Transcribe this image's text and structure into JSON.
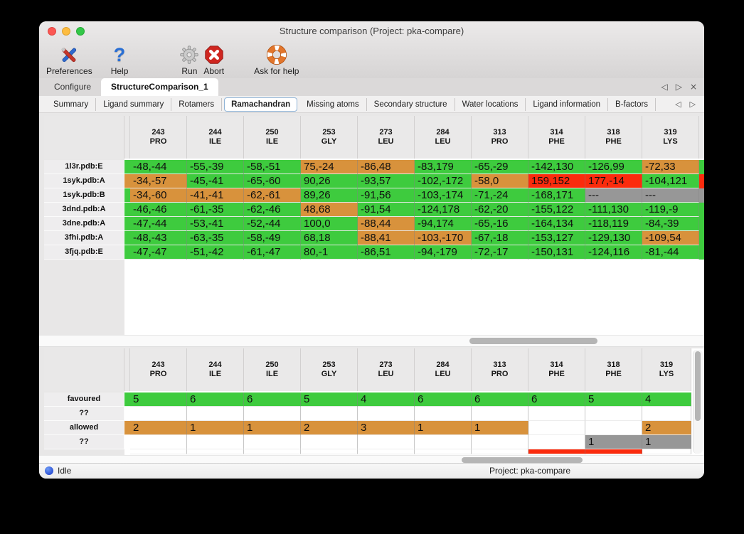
{
  "colors": {
    "green": "#3ecb3e",
    "orange": "#d8923c",
    "red": "#fb2b0d",
    "gray": "#979797",
    "white": "#ffffff"
  },
  "title_bar": {
    "title": "Structure comparison (Project: pka-compare)"
  },
  "toolbar": {
    "items": [
      {
        "label": "Preferences"
      },
      {
        "label": "Help"
      },
      {
        "label": "Run"
      },
      {
        "label": "Abort"
      },
      {
        "label": "Ask for help"
      }
    ]
  },
  "tab_bar": {
    "tabs": [
      {
        "label": "Configure",
        "active": false
      },
      {
        "label": "StructureComparison_1",
        "active": true
      }
    ],
    "icons": {
      "prev": "◁",
      "next": "▷",
      "close": "×"
    }
  },
  "subtab_bar": {
    "tabs": [
      "Summary",
      "Ligand summary",
      "Rotamers",
      "Ramachandran",
      "Missing atoms",
      "Secondary structure",
      "Water locations",
      "Ligand information",
      "B-factors"
    ],
    "selected": "Ramachandran",
    "icons": {
      "prev": "◁",
      "next": "▷"
    }
  },
  "columns": [
    {
      "num": "243",
      "res": "PRO"
    },
    {
      "num": "244",
      "res": "ILE"
    },
    {
      "num": "250",
      "res": "ILE"
    },
    {
      "num": "253",
      "res": "GLY"
    },
    {
      "num": "273",
      "res": "LEU"
    },
    {
      "num": "284",
      "res": "LEU"
    },
    {
      "num": "313",
      "res": "PRO"
    },
    {
      "num": "314",
      "res": "PHE"
    },
    {
      "num": "318",
      "res": "PHE"
    },
    {
      "num": "319",
      "res": "LYS"
    }
  ],
  "ramachandran_table": {
    "rows": [
      {
        "name": "1l3r.pdb:E",
        "strip": "green",
        "edge": "green",
        "cells": [
          {
            "v": "-48,-44",
            "c": "green"
          },
          {
            "v": "-55,-39",
            "c": "green"
          },
          {
            "v": "-58,-51",
            "c": "green"
          },
          {
            "v": "75,-24",
            "c": "orange"
          },
          {
            "v": "-86,48",
            "c": "orange"
          },
          {
            "v": "-83,179",
            "c": "green"
          },
          {
            "v": "-65,-29",
            "c": "green"
          },
          {
            "v": "-142,130",
            "c": "green"
          },
          {
            "v": "-126,99",
            "c": "green"
          },
          {
            "v": "-72,33",
            "c": "orange"
          }
        ]
      },
      {
        "name": "1syk.pdb:A",
        "strip": "orange",
        "edge": "red",
        "cells": [
          {
            "v": "-34,-57",
            "c": "orange"
          },
          {
            "v": "-45,-41",
            "c": "green"
          },
          {
            "v": "-65,-60",
            "c": "green"
          },
          {
            "v": "90,26",
            "c": "green"
          },
          {
            "v": "-93,57",
            "c": "green"
          },
          {
            "v": "-102,-172",
            "c": "green"
          },
          {
            "v": "-58,0",
            "c": "orange"
          },
          {
            "v": "159,152",
            "c": "red"
          },
          {
            "v": "177,-14",
            "c": "red"
          },
          {
            "v": "-104,121",
            "c": "green"
          }
        ]
      },
      {
        "name": "1syk.pdb:B",
        "strip": "green",
        "edge": "gray",
        "cells": [
          {
            "v": "-34,-60",
            "c": "orange"
          },
          {
            "v": "-41,-41",
            "c": "orange"
          },
          {
            "v": "-62,-61",
            "c": "orange"
          },
          {
            "v": "89,26",
            "c": "green"
          },
          {
            "v": "-91,56",
            "c": "green"
          },
          {
            "v": "-103,-174",
            "c": "green"
          },
          {
            "v": "-71,-24",
            "c": "green"
          },
          {
            "v": "-168,171",
            "c": "green"
          },
          {
            "v": "---",
            "c": "gray"
          },
          {
            "v": "---",
            "c": "gray"
          }
        ]
      },
      {
        "name": "3dnd.pdb:A",
        "strip": "green",
        "edge": "green",
        "cells": [
          {
            "v": "-46,-46",
            "c": "green"
          },
          {
            "v": "-61,-35",
            "c": "green"
          },
          {
            "v": "-62,-46",
            "c": "green"
          },
          {
            "v": "48,68",
            "c": "orange"
          },
          {
            "v": "-91,54",
            "c": "green"
          },
          {
            "v": "-124,178",
            "c": "green"
          },
          {
            "v": "-62,-20",
            "c": "green"
          },
          {
            "v": "-155,122",
            "c": "green"
          },
          {
            "v": "-111,130",
            "c": "green"
          },
          {
            "v": "-119,-9",
            "c": "green"
          }
        ]
      },
      {
        "name": "3dne.pdb:A",
        "strip": "green",
        "edge": "green",
        "cells": [
          {
            "v": "-47,-44",
            "c": "green"
          },
          {
            "v": "-53,-41",
            "c": "green"
          },
          {
            "v": "-52,-44",
            "c": "green"
          },
          {
            "v": "100,0",
            "c": "green"
          },
          {
            "v": "-88,44",
            "c": "orange"
          },
          {
            "v": "-94,174",
            "c": "green"
          },
          {
            "v": "-65,-16",
            "c": "green"
          },
          {
            "v": "-164,134",
            "c": "green"
          },
          {
            "v": "-118,119",
            "c": "green"
          },
          {
            "v": "-84,-39",
            "c": "green"
          }
        ]
      },
      {
        "name": "3fhi.pdb:A",
        "strip": "green",
        "edge": "green",
        "cells": [
          {
            "v": "-48,-43",
            "c": "green"
          },
          {
            "v": "-63,-35",
            "c": "green"
          },
          {
            "v": "-58,-49",
            "c": "green"
          },
          {
            "v": "68,18",
            "c": "green"
          },
          {
            "v": "-88,41",
            "c": "orange"
          },
          {
            "v": "-103,-170",
            "c": "orange"
          },
          {
            "v": "-67,-18",
            "c": "green"
          },
          {
            "v": "-153,127",
            "c": "green"
          },
          {
            "v": "-129,130",
            "c": "green"
          },
          {
            "v": "-109,54",
            "c": "orange"
          }
        ]
      },
      {
        "name": "3fjq.pdb:E",
        "strip": "green",
        "edge": "green",
        "cells": [
          {
            "v": "-47,-47",
            "c": "green"
          },
          {
            "v": "-51,-42",
            "c": "green"
          },
          {
            "v": "-61,-47",
            "c": "green"
          },
          {
            "v": "80,-1",
            "c": "green"
          },
          {
            "v": "-86,51",
            "c": "green"
          },
          {
            "v": "-94,-179",
            "c": "green"
          },
          {
            "v": "-72,-17",
            "c": "green"
          },
          {
            "v": "-150,131",
            "c": "green"
          },
          {
            "v": "-124,116",
            "c": "green"
          },
          {
            "v": "-81,-44",
            "c": "green"
          }
        ]
      }
    ]
  },
  "summary_table": {
    "rows": [
      {
        "name": "favoured",
        "strip": "green",
        "cells": [
          {
            "v": "5",
            "c": "green"
          },
          {
            "v": "6",
            "c": "green"
          },
          {
            "v": "6",
            "c": "green"
          },
          {
            "v": "5",
            "c": "green"
          },
          {
            "v": "4",
            "c": "green"
          },
          {
            "v": "6",
            "c": "green"
          },
          {
            "v": "6",
            "c": "green"
          },
          {
            "v": "6",
            "c": "green"
          },
          {
            "v": "5",
            "c": "green"
          },
          {
            "v": "4",
            "c": "green"
          }
        ]
      },
      {
        "name": "??",
        "strip": "white",
        "cells": [
          {
            "v": "",
            "c": "white"
          },
          {
            "v": "",
            "c": "white"
          },
          {
            "v": "",
            "c": "white"
          },
          {
            "v": "",
            "c": "white"
          },
          {
            "v": "",
            "c": "white"
          },
          {
            "v": "",
            "c": "white"
          },
          {
            "v": "",
            "c": "white"
          },
          {
            "v": "",
            "c": "white"
          },
          {
            "v": "",
            "c": "white"
          },
          {
            "v": "",
            "c": "white"
          }
        ]
      },
      {
        "name": "allowed",
        "strip": "orange",
        "cells": [
          {
            "v": "2",
            "c": "orange"
          },
          {
            "v": "1",
            "c": "orange"
          },
          {
            "v": "1",
            "c": "orange"
          },
          {
            "v": "2",
            "c": "orange"
          },
          {
            "v": "3",
            "c": "orange"
          },
          {
            "v": "1",
            "c": "orange"
          },
          {
            "v": "1",
            "c": "orange"
          },
          {
            "v": "",
            "c": "white"
          },
          {
            "v": "",
            "c": "white"
          },
          {
            "v": "2",
            "c": "orange"
          }
        ]
      },
      {
        "name": "??",
        "strip": "white",
        "cells": [
          {
            "v": "",
            "c": "white"
          },
          {
            "v": "",
            "c": "white"
          },
          {
            "v": "",
            "c": "white"
          },
          {
            "v": "",
            "c": "white"
          },
          {
            "v": "",
            "c": "white"
          },
          {
            "v": "",
            "c": "white"
          },
          {
            "v": "",
            "c": "white"
          },
          {
            "v": "",
            "c": "white"
          },
          {
            "v": "1",
            "c": "gray"
          },
          {
            "v": "1",
            "c": "gray"
          }
        ]
      }
    ],
    "partial_row": [
      "white",
      "white",
      "white",
      "white",
      "white",
      "white",
      "white",
      "red",
      "red",
      "white"
    ]
  },
  "status_bar": {
    "state": "Idle",
    "project": "Project: pka-compare"
  }
}
